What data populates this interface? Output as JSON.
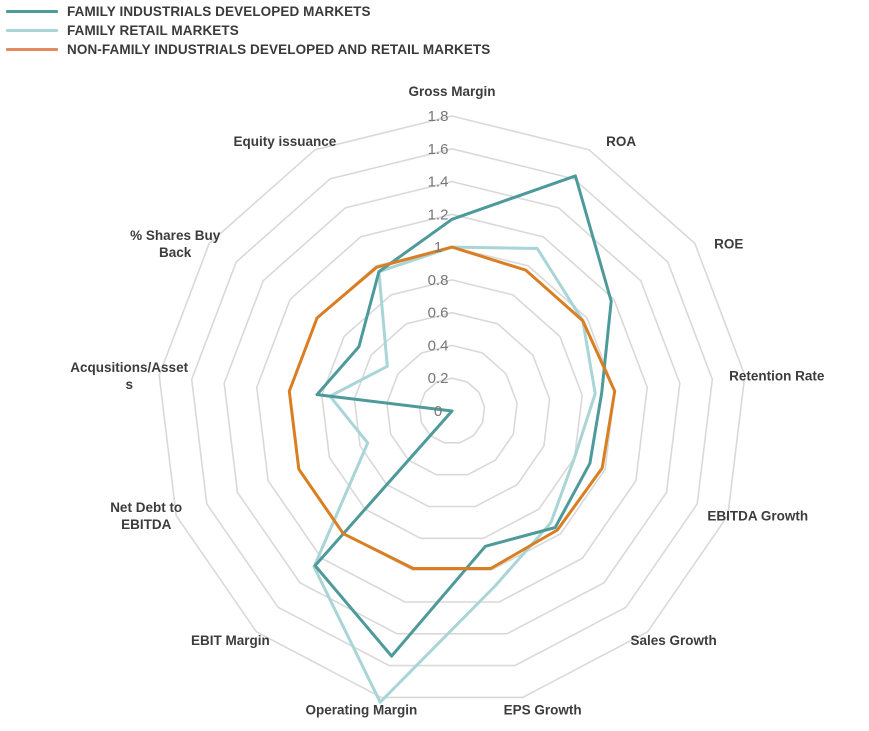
{
  "chart_data": {
    "type": "radar",
    "title": "",
    "axes": [
      "Gross Margin",
      "ROA",
      "ROE",
      "Retention Rate",
      "EBITDA Growth",
      "Sales Growth",
      "EPS Growth",
      "Operating Margin",
      "EBIT Margin",
      "Net Debt to EBITDA",
      "Acqusitions/Assets",
      "% Shares Buy Back",
      "Equity issuance"
    ],
    "axis_label_lines": [
      [
        "Gross Margin"
      ],
      [
        "ROA"
      ],
      [
        "ROE"
      ],
      [
        "Retention Rate"
      ],
      [
        "EBITDA Growth"
      ],
      [
        "Sales Growth"
      ],
      [
        "EPS Growth"
      ],
      [
        "Operating Margin"
      ],
      [
        "EBIT Margin"
      ],
      [
        "Net Debt to",
        "EBITDA"
      ],
      [
        "Acqusitions/Asset",
        "s"
      ],
      [
        "% Shares Buy",
        "Back"
      ],
      [
        "Equity issuance"
      ]
    ],
    "ticks": [
      "0",
      "0.2",
      "0.4",
      "0.6",
      "0.8",
      "1",
      "1.2",
      "1.4",
      "1.6",
      "1.8"
    ],
    "range": [
      0,
      1.8
    ],
    "grid": true,
    "legend_position": "top-left",
    "series": [
      {
        "name": "FAMILY INDUSTRIALS DEVELOPED MARKETS",
        "color": "#4e9a9b",
        "values": [
          1.17,
          1.62,
          1.18,
          0.92,
          0.9,
          0.95,
          0.85,
          1.54,
          1.26,
          0.0,
          0.83,
          0.69,
          0.96
        ]
      },
      {
        "name": "FAMILY RETAIL MARKETS",
        "color": "#a9d5d6",
        "values": [
          1.0,
          1.12,
          0.97,
          0.88,
          0.8,
          0.91,
          1.1,
          1.83,
          1.27,
          0.55,
          0.75,
          0.48,
          0.96
        ]
      },
      {
        "name": "NON-FAMILY INDUSTRIALS DEVELOPED AND RETAIL MARKETS",
        "color": "#d97e22",
        "values": [
          1.0,
          0.97,
          0.97,
          1.0,
          0.98,
          0.97,
          0.99,
          0.99,
          1.0,
          1.0,
          1.0,
          1.0,
          0.99
        ]
      }
    ]
  }
}
